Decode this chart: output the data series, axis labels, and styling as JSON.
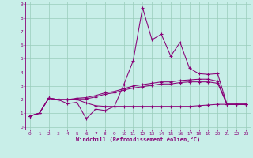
{
  "xlabel": "Windchill (Refroidissement éolien,°C)",
  "bg_color": "#c8eee8",
  "grid_color": "#99ccbb",
  "line_color": "#880077",
  "xlim": [
    -0.5,
    23.5
  ],
  "ylim": [
    -0.2,
    9.2
  ],
  "xticks": [
    0,
    1,
    2,
    3,
    4,
    5,
    6,
    7,
    8,
    9,
    10,
    11,
    12,
    13,
    14,
    15,
    16,
    17,
    18,
    19,
    20,
    21,
    22,
    23
  ],
  "yticks": [
    0,
    1,
    2,
    3,
    4,
    5,
    6,
    7,
    8,
    9
  ],
  "series": [
    {
      "x": [
        0,
        1,
        2,
        3,
        4,
        5,
        6,
        7,
        8,
        9,
        10,
        11,
        12,
        13,
        14,
        15,
        16,
        17,
        18,
        19,
        20,
        21,
        22,
        23
      ],
      "y": [
        0.8,
        1.0,
        2.1,
        2.0,
        1.7,
        1.8,
        0.6,
        1.3,
        1.2,
        1.5,
        3.1,
        4.85,
        8.75,
        6.4,
        6.8,
        5.2,
        6.2,
        4.3,
        3.9,
        3.85,
        3.9,
        1.65,
        1.65,
        1.65
      ]
    },
    {
      "x": [
        0,
        1,
        2,
        3,
        4,
        5,
        6,
        7,
        8,
        9,
        10,
        11,
        12,
        13,
        14,
        15,
        16,
        17,
        18,
        19,
        20,
        21,
        22,
        23
      ],
      "y": [
        0.8,
        1.0,
        2.1,
        2.0,
        2.0,
        2.1,
        2.15,
        2.3,
        2.5,
        2.6,
        2.8,
        3.0,
        3.1,
        3.2,
        3.3,
        3.3,
        3.4,
        3.45,
        3.5,
        3.5,
        3.35,
        1.65,
        1.65,
        1.65
      ]
    },
    {
      "x": [
        0,
        1,
        2,
        3,
        4,
        5,
        6,
        7,
        8,
        9,
        10,
        11,
        12,
        13,
        14,
        15,
        16,
        17,
        18,
        19,
        20,
        21,
        22,
        23
      ],
      "y": [
        0.8,
        1.0,
        2.1,
        2.0,
        2.0,
        2.05,
        2.05,
        2.2,
        2.4,
        2.5,
        2.7,
        2.85,
        2.95,
        3.05,
        3.15,
        3.15,
        3.25,
        3.3,
        3.3,
        3.3,
        3.2,
        1.65,
        1.65,
        1.65
      ]
    },
    {
      "x": [
        0,
        1,
        2,
        3,
        4,
        5,
        6,
        7,
        8,
        9,
        10,
        11,
        12,
        13,
        14,
        15,
        16,
        17,
        18,
        19,
        20,
        21,
        22,
        23
      ],
      "y": [
        0.8,
        1.0,
        2.1,
        2.0,
        2.0,
        2.0,
        1.75,
        1.55,
        1.5,
        1.5,
        1.5,
        1.5,
        1.5,
        1.5,
        1.5,
        1.5,
        1.5,
        1.5,
        1.55,
        1.6,
        1.65,
        1.65,
        1.65,
        1.65
      ]
    }
  ]
}
